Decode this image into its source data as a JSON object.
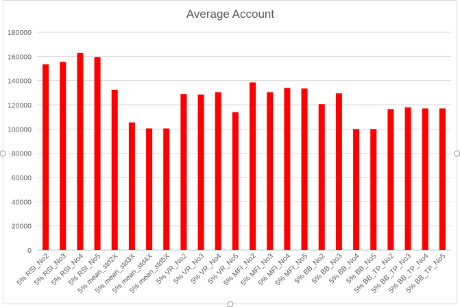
{
  "chart_data": {
    "type": "bar",
    "title": "Average Account",
    "xlabel": "",
    "ylabel": "",
    "ylim": [
      0,
      180000
    ],
    "ytick_step": 20000,
    "grid": true,
    "legend": "none",
    "bar_color": "#ff0000",
    "categories": [
      "5% RSI_No2",
      "5% RSI_No3",
      "5% RSI_No4",
      "5% RSI_No5",
      "5% mean_std2X",
      "5% mean_std3X",
      "5% mean_std4X",
      "5% mean_std5X",
      "5% VR_No2",
      "5% VR_No3",
      "5% VR_No4",
      "5% VR_No5",
      "5% MFI_No2",
      "5% MFI_No3",
      "5% MFI_No4",
      "5% MFI_No5",
      "5% BB_No2",
      "5% BB_No3",
      "5% BB_No4",
      "5% BB_No5",
      "5% BB_TP_No2",
      "5% BB_TP_No3",
      "5% BB_TP_No4",
      "5% BB_TP_No5"
    ],
    "values": [
      153500,
      155500,
      163000,
      159500,
      132500,
      105500,
      100500,
      100500,
      129000,
      128500,
      130500,
      114000,
      138500,
      130500,
      134000,
      133500,
      120500,
      129500,
      100000,
      100000,
      116500,
      118000,
      117000,
      117000
    ]
  }
}
